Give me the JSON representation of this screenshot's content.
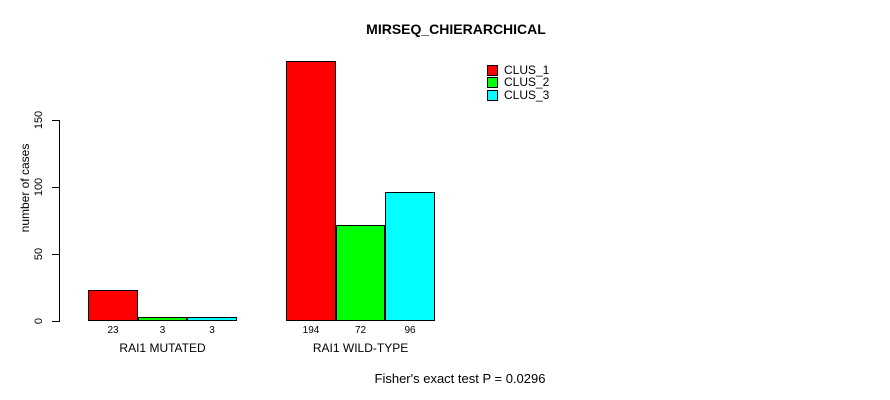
{
  "page": {
    "background": "#ffffff",
    "text_color": "#000000"
  },
  "chart_data": {
    "type": "bar",
    "title": "MIRSEQ_CHIERARCHICAL",
    "xlabel": "",
    "ylabel": "number of cases",
    "categories": [
      "RAI1 MUTATED",
      "RAI1 WILD-TYPE"
    ],
    "series": [
      {
        "name": "CLUS_1",
        "color": "#FF0000",
        "values": [
          23,
          194
        ]
      },
      {
        "name": "CLUS_2",
        "color": "#00FF00",
        "values": [
          3,
          72
        ]
      },
      {
        "name": "CLUS_3",
        "color": "#00FFFF",
        "values": [
          3,
          96
        ]
      }
    ],
    "bar_value_labels": [
      [
        "23",
        "3",
        "3"
      ],
      [
        "194",
        "72",
        "96"
      ]
    ],
    "yticks": [
      0,
      50,
      100,
      150
    ],
    "ylim": [
      0,
      200
    ],
    "grid": false,
    "legend_position": "top-right",
    "bar_border_color": "#000000",
    "annotation": "Fisher's exact test P = 0.0296"
  }
}
